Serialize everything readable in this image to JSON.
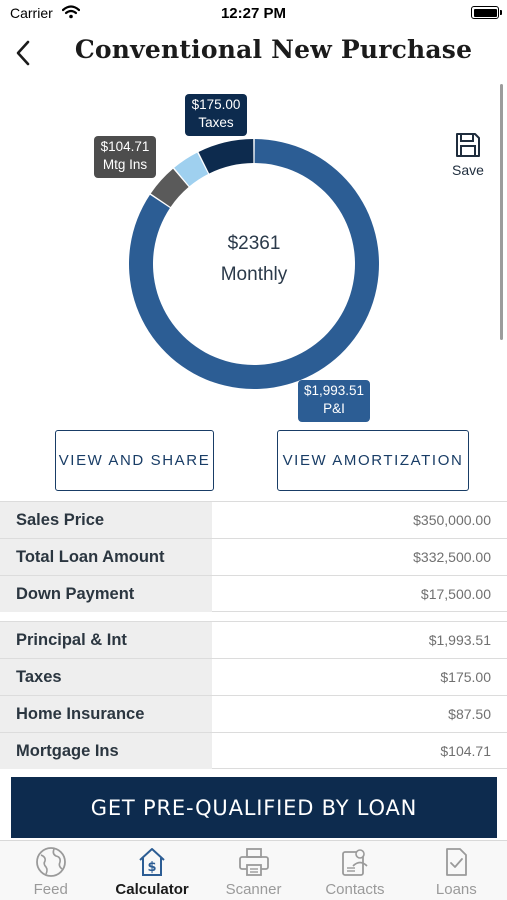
{
  "status_bar": {
    "carrier": "Carrier",
    "time": "12:27 PM"
  },
  "header": {
    "title": "Conventional New Purchase"
  },
  "chart": {
    "center_amount": "$2361",
    "center_label": "Monthly",
    "save_label": "Save",
    "callouts": {
      "taxes": {
        "amount": "$175.00",
        "label": "Taxes"
      },
      "mortgage_insurance": {
        "amount": "$104.71",
        "label": "Mtg Ins"
      },
      "principal_interest": {
        "amount": "$1,993.51",
        "label": "P&I"
      }
    }
  },
  "chart_data": {
    "type": "pie",
    "categories": [
      "P&I",
      "Mtg Ins",
      "Home Insurance",
      "Taxes"
    ],
    "values": [
      1993.51,
      104.71,
      87.5,
      175.0
    ],
    "colors": [
      "#2c5d94",
      "#5a5a5a",
      "#9fd0ef",
      "#0d2b4e"
    ],
    "total_label": "$2361",
    "subtitle": "Monthly"
  },
  "actions": {
    "view_and_share": "VIEW AND SHARE",
    "view_amortization": "VIEW AMORTIZATION"
  },
  "loan_summary": [
    {
      "label": "Sales Price",
      "value": "$350,000.00"
    },
    {
      "label": "Total Loan Amount",
      "value": "$332,500.00"
    },
    {
      "label": "Down Payment",
      "value": "$17,500.00"
    }
  ],
  "payment_breakdown": [
    {
      "label": "Principal & Int",
      "value": "$1,993.51"
    },
    {
      "label": "Taxes",
      "value": "$175.00"
    },
    {
      "label": "Home Insurance",
      "value": "$87.50"
    },
    {
      "label": "Mortgage Ins",
      "value": "$104.71"
    }
  ],
  "cta": {
    "label": "GET PRE-QUALIFIED BY LOAN"
  },
  "tab_bar": {
    "tabs": [
      {
        "label": "Feed",
        "icon": "globe-icon"
      },
      {
        "label": "Calculator",
        "icon": "calculator-dollar-icon",
        "active": true
      },
      {
        "label": "Scanner",
        "icon": "printer-icon"
      },
      {
        "label": "Contacts",
        "icon": "contacts-icon"
      },
      {
        "label": "Loans",
        "icon": "document-check-icon"
      }
    ]
  }
}
